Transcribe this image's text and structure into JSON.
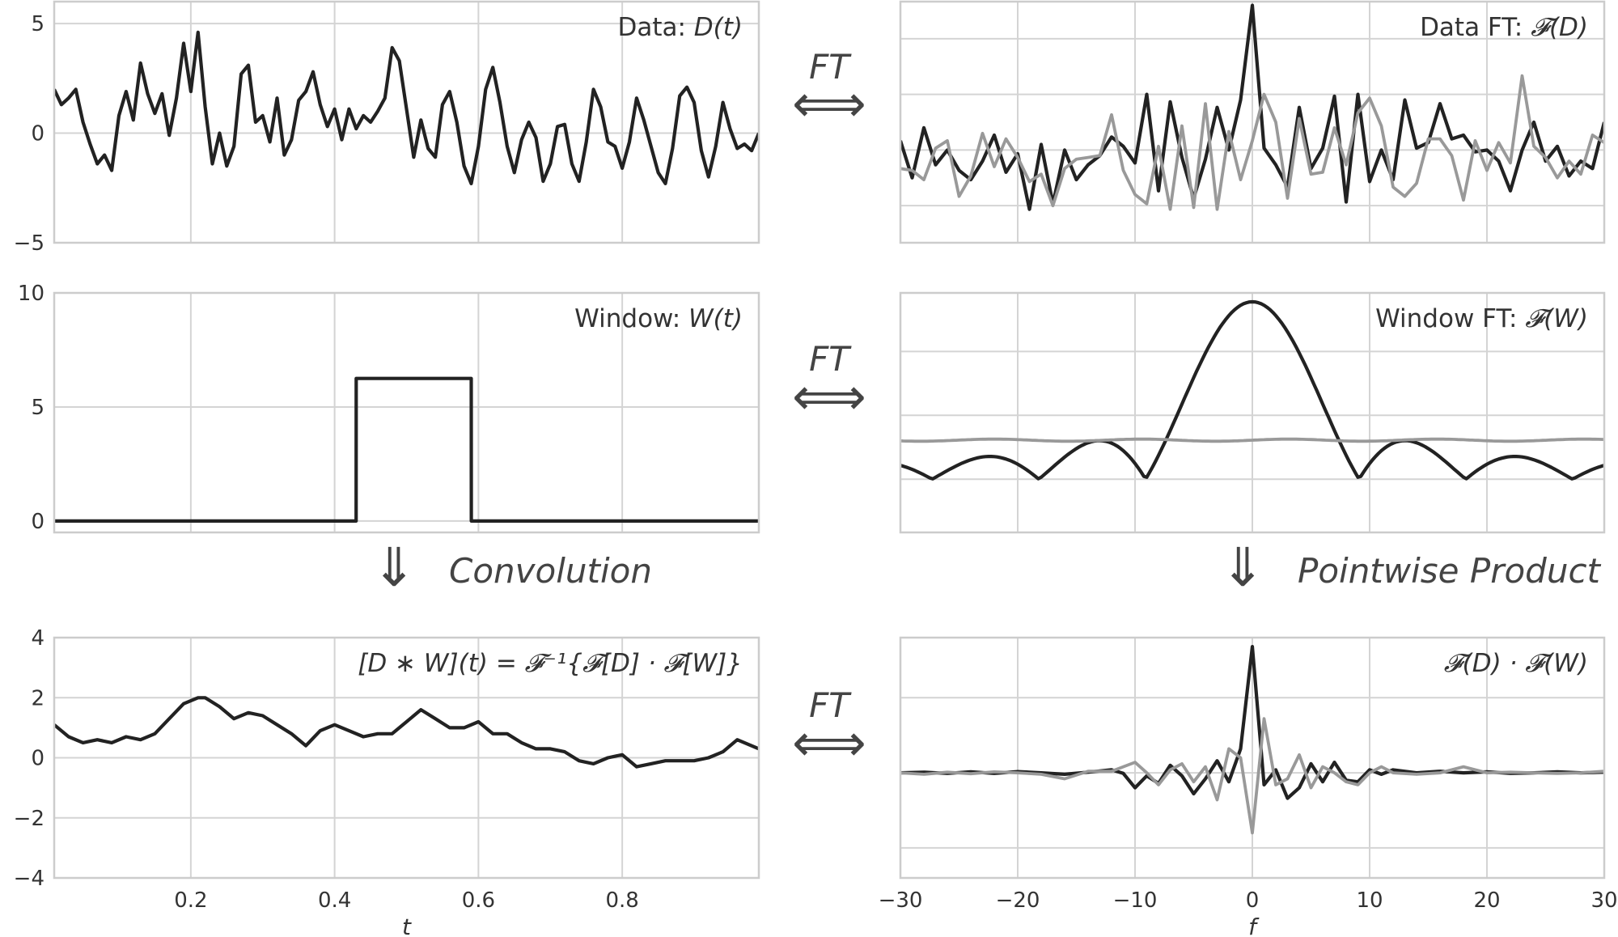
{
  "chart_data": [
    {
      "id": "data",
      "type": "line",
      "annotation_prefix": "Data: ",
      "annotation_math": "D(t)",
      "xlim": [
        0.01,
        0.99
      ],
      "ylim": [
        -5,
        6
      ],
      "yticks": [
        -5,
        0,
        5
      ],
      "xticks": [
        0.2,
        0.4,
        0.6,
        0.8
      ],
      "show_xticklabels": false,
      "series": [
        {
          "color": "#222222",
          "x": [
            0.01,
            0.02,
            0.03,
            0.04,
            0.05,
            0.06,
            0.07,
            0.08,
            0.09,
            0.1,
            0.11,
            0.12,
            0.13,
            0.14,
            0.15,
            0.16,
            0.17,
            0.18,
            0.19,
            0.2,
            0.21,
            0.22,
            0.23,
            0.24,
            0.25,
            0.26,
            0.27,
            0.28,
            0.29,
            0.3,
            0.31,
            0.32,
            0.33,
            0.34,
            0.35,
            0.36,
            0.37,
            0.38,
            0.39,
            0.4,
            0.41,
            0.42,
            0.43,
            0.44,
            0.45,
            0.46,
            0.47,
            0.48,
            0.49,
            0.5,
            0.51,
            0.52,
            0.53,
            0.54,
            0.55,
            0.56,
            0.57,
            0.58,
            0.59,
            0.6,
            0.61,
            0.62,
            0.63,
            0.64,
            0.65,
            0.66,
            0.67,
            0.68,
            0.69,
            0.7,
            0.71,
            0.72,
            0.73,
            0.74,
            0.75,
            0.76,
            0.77,
            0.78,
            0.79,
            0.8,
            0.81,
            0.82,
            0.83,
            0.84,
            0.85,
            0.86,
            0.87,
            0.88,
            0.89,
            0.9,
            0.91,
            0.92,
            0.93,
            0.94,
            0.95,
            0.96,
            0.97,
            0.98,
            0.99
          ],
          "y": [
            2.0,
            1.3,
            1.6,
            2.0,
            0.5,
            -0.5,
            -1.4,
            -1.0,
            -1.7,
            0.8,
            1.9,
            0.6,
            3.2,
            1.8,
            0.9,
            1.8,
            -0.1,
            1.6,
            4.1,
            1.9,
            4.6,
            1.2,
            -1.4,
            0.0,
            -1.5,
            -0.6,
            2.7,
            3.1,
            0.5,
            0.8,
            -0.4,
            1.6,
            -1.0,
            -0.3,
            1.5,
            1.9,
            2.8,
            1.3,
            0.3,
            1.1,
            -0.3,
            1.1,
            0.2,
            0.8,
            0.5,
            1.0,
            1.6,
            3.9,
            3.3,
            1.1,
            -1.1,
            0.6,
            -0.7,
            -1.1,
            1.3,
            1.9,
            0.5,
            -1.5,
            -2.3,
            -0.6,
            2.0,
            3.0,
            1.4,
            -0.6,
            -1.8,
            -0.3,
            0.5,
            -0.2,
            -2.2,
            -1.4,
            0.3,
            0.4,
            -1.4,
            -2.2,
            -0.4,
            2.0,
            1.2,
            -0.4,
            -0.6,
            -1.6,
            -0.4,
            1.6,
            0.6,
            -0.6,
            -1.8,
            -2.3,
            -0.7,
            1.7,
            2.1,
            1.4,
            -0.8,
            -2.0,
            -0.6,
            1.4,
            0.2,
            -0.7,
            -0.5,
            -0.8,
            0.0
          ]
        }
      ]
    },
    {
      "id": "data_ft",
      "type": "line",
      "annotation_prefix": "Data FT: ",
      "annotation_math": "𝓕(D)",
      "xlim": [
        -30,
        30
      ],
      "ylim": [
        -6,
        7
      ],
      "xticks": [
        -30,
        -20,
        -10,
        0,
        10,
        20,
        30
      ],
      "yticks": [
        -4,
        -1,
        2,
        5
      ],
      "show_xticklabels": false,
      "show_yticklabels": false,
      "series": [
        {
          "color": "#222222",
          "x": [
            -30,
            -29,
            -28,
            -27,
            -26,
            -25,
            -24,
            -23,
            -22,
            -21,
            -20,
            -19,
            -18,
            -17,
            -16,
            -15,
            -14,
            -13,
            -12,
            -11,
            -10,
            -9,
            -8,
            -7,
            -6,
            -5,
            -4,
            -3,
            -2,
            -1,
            0,
            1,
            2,
            3,
            4,
            5,
            6,
            7,
            8,
            9,
            10,
            11,
            12,
            13,
            14,
            15,
            16,
            17,
            18,
            19,
            20,
            21,
            22,
            23,
            24,
            25,
            26,
            27,
            28,
            29,
            30
          ],
          "y": [
            -0.5,
            -2.5,
            0.2,
            -1.8,
            -1.0,
            -2.1,
            -2.6,
            -1.6,
            -0.2,
            -2.2,
            -1.2,
            -4.2,
            -0.7,
            -3.9,
            -1.0,
            -2.6,
            -1.8,
            -1.3,
            -0.3,
            -0.8,
            -1.7,
            2.0,
            -3.2,
            1.6,
            -1.4,
            -3.6,
            -1.5,
            1.3,
            -1.0,
            1.7,
            6.8,
            -0.9,
            -1.8,
            -3.0,
            1.3,
            -2.0,
            -0.9,
            1.9,
            -3.8,
            2.0,
            -2.7,
            -1.0,
            -2.6,
            1.7,
            -0.9,
            -0.6,
            1.5,
            -0.4,
            -0.2,
            -1.1,
            -1.0,
            -1.6,
            -3.2,
            -1.0,
            0.5,
            -1.6,
            -0.8,
            -2.4,
            -1.6,
            -2.0,
            0.5
          ]
        },
        {
          "color": "#999999",
          "x": [
            -30,
            -29,
            -28,
            -27,
            -26,
            -25,
            -24,
            -23,
            -22,
            -21,
            -20,
            -19,
            -18,
            -17,
            -16,
            -15,
            -14,
            -13,
            -12,
            -11,
            -10,
            -9,
            -8,
            -7,
            -6,
            -5,
            -4,
            -3,
            -2,
            -1,
            0,
            1,
            2,
            3,
            4,
            5,
            6,
            7,
            8,
            9,
            10,
            11,
            12,
            13,
            14,
            15,
            16,
            17,
            18,
            19,
            20,
            21,
            22,
            23,
            24,
            25,
            26,
            27,
            28,
            29,
            30
          ],
          "y": [
            -2.0,
            -2.1,
            -2.6,
            -0.9,
            -0.5,
            -3.5,
            -2.4,
            -0.1,
            -1.9,
            -0.4,
            -1.4,
            -2.7,
            -2.3,
            -4.0,
            -2.0,
            -1.5,
            -1.4,
            -1.3,
            0.9,
            -2.1,
            -3.4,
            -3.9,
            -0.8,
            -4.2,
            0.3,
            -4.1,
            1.5,
            -4.2,
            0.0,
            -2.6,
            -0.5,
            2.0,
            0.5,
            -3.6,
            0.7,
            -2.3,
            -2.2,
            0.2,
            -1.8,
            1.0,
            1.8,
            0.3,
            -3.0,
            -3.5,
            -2.8,
            -0.4,
            -0.4,
            -1.3,
            -3.7,
            -0.5,
            -2.1,
            -0.6,
            -1.7,
            3.0,
            -0.8,
            -1.4,
            -2.5,
            -1.6,
            -2.3,
            -0.2,
            -0.6
          ]
        }
      ]
    },
    {
      "id": "window",
      "type": "line",
      "annotation_prefix": "Window: ",
      "annotation_math": "W(t)",
      "xlim": [
        0.01,
        0.99
      ],
      "ylim": [
        -0.5,
        10
      ],
      "yticks": [
        0,
        5,
        10
      ],
      "xticks": [
        0.2,
        0.4,
        0.6,
        0.8
      ],
      "show_xticklabels": false,
      "series": [
        {
          "color": "#222222",
          "x": [
            0.01,
            0.4299,
            0.43,
            0.59,
            0.5901,
            0.99
          ],
          "y": [
            0,
            0,
            6.25,
            6.25,
            0,
            0
          ]
        }
      ]
    },
    {
      "id": "window_ft",
      "type": "line",
      "annotation_prefix": "Window FT: ",
      "annotation_math": "𝓕(W)",
      "xlim": [
        -30,
        30
      ],
      "ylim": [
        -0.3,
        1.05
      ],
      "xticks": [
        -30,
        -20,
        -10,
        0,
        10,
        20,
        30
      ],
      "yticks": [
        0,
        0.36,
        0.72
      ],
      "show_xticklabels": false,
      "show_yticklabels": false,
      "series": [
        {
          "color": "#222222",
          "function": "abs-sinc",
          "center": 0,
          "peak": 1.0,
          "zero_spacing": 9.1
        },
        {
          "color": "#999999",
          "function": "flat-ripple",
          "level": 0.22,
          "amplitude": 0.006
        }
      ]
    },
    {
      "id": "convolution",
      "type": "line",
      "annotation_math": "[D ∗ W](t) = 𝓕⁻¹{𝓕[D] · 𝓕[W]}",
      "xlim": [
        0.01,
        0.99
      ],
      "ylim": [
        -4,
        4
      ],
      "yticks": [
        -4,
        -2,
        0,
        2,
        4
      ],
      "xticks": [
        0.2,
        0.4,
        0.6,
        0.8
      ],
      "xticklabels": [
        "0.2",
        "0.4",
        "0.6",
        "0.8"
      ],
      "xlabel": "t",
      "series": [
        {
          "color": "#222222",
          "x": [
            0.01,
            0.03,
            0.05,
            0.07,
            0.09,
            0.11,
            0.13,
            0.15,
            0.17,
            0.19,
            0.21,
            0.22,
            0.24,
            0.26,
            0.28,
            0.3,
            0.32,
            0.34,
            0.36,
            0.38,
            0.4,
            0.42,
            0.44,
            0.46,
            0.48,
            0.5,
            0.52,
            0.54,
            0.56,
            0.58,
            0.6,
            0.62,
            0.64,
            0.66,
            0.68,
            0.7,
            0.72,
            0.74,
            0.76,
            0.78,
            0.8,
            0.82,
            0.84,
            0.86,
            0.88,
            0.9,
            0.92,
            0.94,
            0.96,
            0.99
          ],
          "y": [
            1.1,
            0.7,
            0.5,
            0.6,
            0.5,
            0.7,
            0.6,
            0.8,
            1.3,
            1.8,
            2.0,
            2.0,
            1.7,
            1.3,
            1.5,
            1.4,
            1.1,
            0.8,
            0.4,
            0.9,
            1.1,
            0.9,
            0.7,
            0.8,
            0.8,
            1.2,
            1.6,
            1.3,
            1.0,
            1.0,
            1.2,
            0.8,
            0.8,
            0.5,
            0.3,
            0.3,
            0.2,
            -0.1,
            -0.2,
            0.0,
            0.1,
            -0.3,
            -0.2,
            -0.1,
            -0.1,
            -0.1,
            0.0,
            0.2,
            0.6,
            0.3
          ]
        }
      ]
    },
    {
      "id": "product_ft",
      "type": "line",
      "annotation_math": "𝓕(D) · 𝓕(W)",
      "xlim": [
        -30,
        30
      ],
      "ylim": [
        -3.5,
        4.5
      ],
      "xticks": [
        -30,
        -20,
        -10,
        0,
        10,
        20,
        30
      ],
      "xticklabels": [
        "−30",
        "−20",
        "−10",
        "0",
        "10",
        "20",
        "30"
      ],
      "yticks": [
        -2.5,
        0,
        2.5
      ],
      "show_yticklabels": false,
      "xlabel": "f",
      "series": [
        {
          "color": "#222222",
          "x": [
            -30,
            -28,
            -26,
            -24,
            -22,
            -20,
            -18,
            -16,
            -14,
            -12,
            -11,
            -10,
            -9,
            -8,
            -7,
            -6,
            -5,
            -4,
            -3,
            -2,
            -1,
            0,
            1,
            2,
            3,
            4,
            5,
            6,
            7,
            8,
            9,
            10,
            11,
            12,
            14,
            16,
            18,
            20,
            22,
            24,
            26,
            28,
            30
          ],
          "y": [
            0.0,
            0.02,
            -0.02,
            0.03,
            -0.02,
            0.04,
            0.0,
            -0.05,
            0.02,
            0.1,
            -0.02,
            -0.5,
            -0.1,
            -0.35,
            0.25,
            -0.1,
            -0.7,
            -0.2,
            0.4,
            -0.3,
            0.8,
            4.2,
            -0.4,
            0.1,
            -0.85,
            -0.5,
            0.3,
            -0.3,
            0.35,
            -0.25,
            -0.3,
            0.1,
            -0.05,
            0.1,
            0.0,
            0.05,
            0.0,
            0.03,
            -0.02,
            0.0,
            0.03,
            0.0,
            0.02
          ]
        },
        {
          "color": "#999999",
          "x": [
            -30,
            -28,
            -26,
            -24,
            -22,
            -20,
            -18,
            -16,
            -14,
            -12,
            -11,
            -10,
            -9,
            -8,
            -7,
            -6,
            -5,
            -4,
            -3,
            -2,
            -1,
            0,
            1,
            2,
            3,
            4,
            5,
            6,
            7,
            8,
            9,
            10,
            11,
            12,
            14,
            16,
            18,
            20,
            22,
            24,
            26,
            28,
            30
          ],
          "y": [
            0.0,
            -0.05,
            0.02,
            -0.03,
            0.03,
            0.0,
            -0.05,
            -0.2,
            0.05,
            0.05,
            0.2,
            0.35,
            0.0,
            -0.4,
            0.1,
            0.3,
            -0.3,
            0.2,
            -0.9,
            0.8,
            0.5,
            -2.0,
            1.8,
            -0.4,
            -0.2,
            0.6,
            -0.5,
            0.2,
            0.0,
            -0.3,
            -0.4,
            0.0,
            0.2,
            0.0,
            -0.05,
            0.0,
            0.2,
            0.0,
            0.02,
            0.0,
            -0.02,
            0.0,
            0.05
          ]
        }
      ]
    }
  ],
  "between_labels": {
    "ft": "FT",
    "convolution": "Convolution",
    "pointwise": "Pointwise Product",
    "arrow_double": "⟺",
    "arrow_down": "⇓"
  }
}
